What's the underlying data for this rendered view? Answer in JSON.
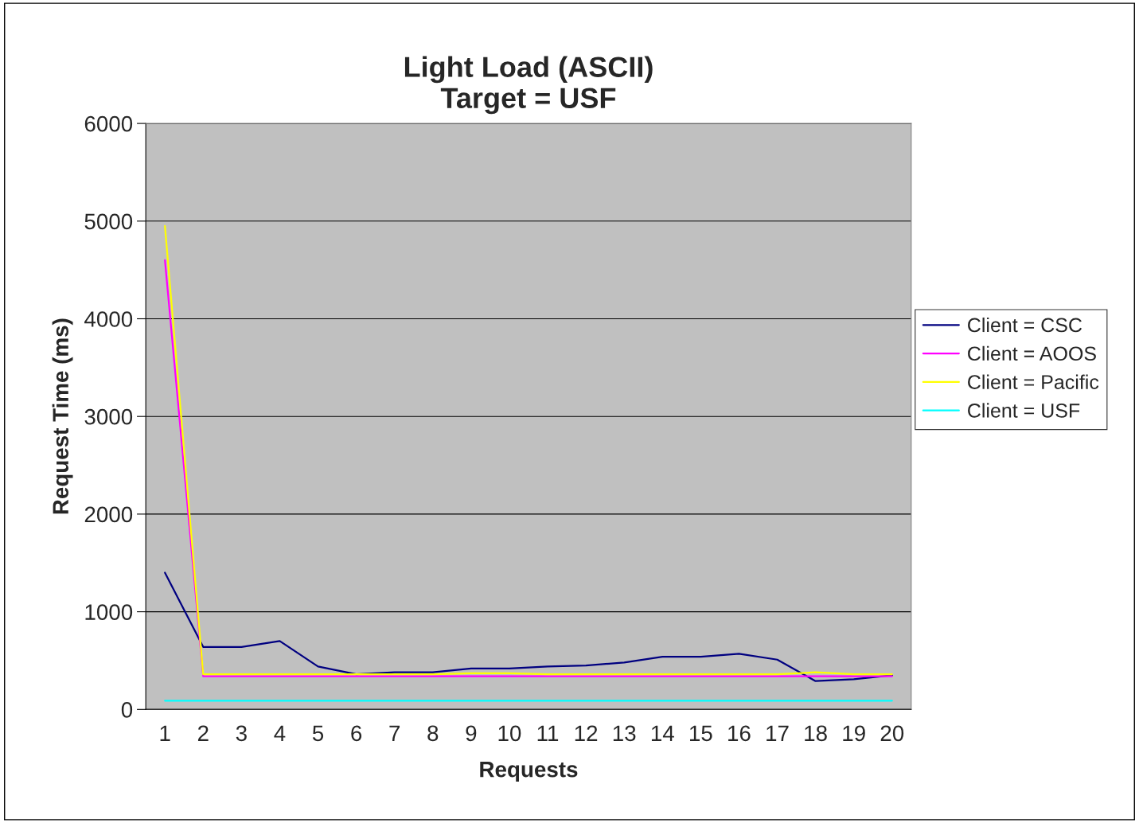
{
  "chart_data": {
    "type": "line",
    "title": "Light Load (ASCII)\nTarget = USF",
    "xlabel": "Requests",
    "ylabel": "Request Time (ms)",
    "categories": [
      "1",
      "2",
      "3",
      "4",
      "5",
      "6",
      "7",
      "8",
      "9",
      "10",
      "11",
      "12",
      "13",
      "14",
      "15",
      "16",
      "17",
      "18",
      "19",
      "20"
    ],
    "series": [
      {
        "name": "Client = CSC",
        "color": "#000080",
        "values": [
          1400,
          640,
          640,
          700,
          440,
          360,
          380,
          380,
          420,
          420,
          440,
          450,
          480,
          540,
          540,
          570,
          510,
          290,
          310,
          350
        ]
      },
      {
        "name": "Client = AOOS",
        "color": "#ff00ff",
        "values": [
          4600,
          340,
          340,
          340,
          340,
          340,
          340,
          340,
          340,
          340,
          340,
          340,
          340,
          340,
          340,
          340,
          340,
          340,
          340,
          340
        ]
      },
      {
        "name": "Client = Pacific",
        "color": "#ffff00",
        "values": [
          4950,
          360,
          360,
          360,
          360,
          360,
          360,
          360,
          370,
          370,
          360,
          360,
          360,
          360,
          360,
          360,
          360,
          380,
          360,
          360
        ]
      },
      {
        "name": "Client = USF",
        "color": "#00ffff",
        "values": [
          90,
          90,
          90,
          90,
          90,
          90,
          90,
          90,
          90,
          90,
          90,
          90,
          90,
          90,
          90,
          90,
          90,
          90,
          90,
          90
        ]
      }
    ],
    "ylim": [
      0,
      6000
    ],
    "yticks": [
      0,
      1000,
      2000,
      3000,
      4000,
      5000,
      6000
    ],
    "grid": "y",
    "legend": "right",
    "marker": "none",
    "line_style": "solid"
  }
}
